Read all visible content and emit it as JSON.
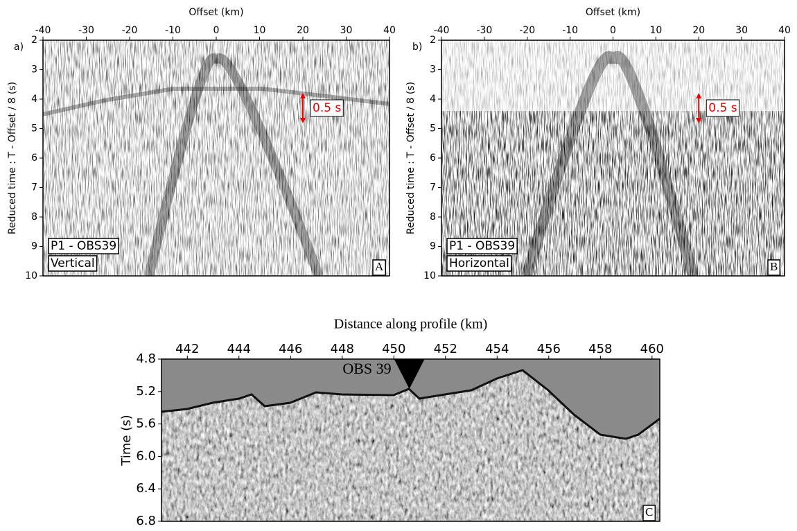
{
  "chart_data": [
    {
      "type": "seismic-record",
      "panel": "a)",
      "xlabel": "Offset (km)",
      "ylabel": "Reduced time : T - Offset / 8 (s)",
      "xlim": [
        -40,
        40
      ],
      "xticks": [
        -40,
        -30,
        -20,
        -10,
        0,
        10,
        20,
        30,
        40
      ],
      "ylim": [
        10,
        2
      ],
      "yticks": [
        2,
        3,
        4,
        5,
        6,
        7,
        8,
        9,
        10
      ],
      "scale_label": "0.5 s",
      "station": "P1 - OBS39",
      "component": "Vertical",
      "tag": "A"
    },
    {
      "type": "seismic-record",
      "panel": "b)",
      "xlabel": "Offset (km)",
      "ylabel": "Reduced time : T - Offset / 8 (s)",
      "xlim": [
        -40,
        40
      ],
      "xticks": [
        -40,
        -30,
        -20,
        -10,
        0,
        10,
        20,
        30,
        40
      ],
      "ylim": [
        10,
        2
      ],
      "yticks": [
        2,
        3,
        4,
        5,
        6,
        7,
        8,
        9,
        10
      ],
      "scale_label": "0.5 s",
      "station": "P1 - OBS39",
      "component": "Horizontal",
      "tag": "B"
    },
    {
      "type": "seismic-section",
      "xlabel": "Distance along profile (km)",
      "ylabel": "Time (s)",
      "xlim": [
        441,
        460.3
      ],
      "xticks": [
        442,
        444,
        446,
        448,
        450,
        452,
        454,
        456,
        458,
        460
      ],
      "ylim": [
        6.8,
        4.8
      ],
      "yticks": [
        4.8,
        5.2,
        5.6,
        {
          "value": 6,
          "label": "6.0"
        },
        6.4,
        6.8
      ],
      "obs_marker": {
        "label": "OBS 39",
        "x": 450.6
      },
      "tag": "C"
    }
  ]
}
